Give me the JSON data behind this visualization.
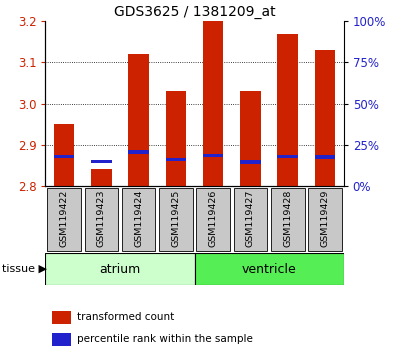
{
  "title": "GDS3625 / 1381209_at",
  "samples": [
    "GSM119422",
    "GSM119423",
    "GSM119424",
    "GSM119425",
    "GSM119426",
    "GSM119427",
    "GSM119428",
    "GSM119429"
  ],
  "red_values": [
    2.95,
    2.84,
    3.12,
    3.03,
    3.2,
    3.03,
    3.17,
    3.13
  ],
  "blue_values": [
    2.872,
    2.86,
    2.882,
    2.864,
    2.874,
    2.858,
    2.872,
    2.87
  ],
  "ymin": 2.8,
  "ymax": 3.2,
  "yticks": [
    2.8,
    2.9,
    3.0,
    3.1,
    3.2
  ],
  "atrium_label": "atrium",
  "ventricle_label": "ventricle",
  "tissue_label": "tissue",
  "legend_red": "transformed count",
  "legend_blue": "percentile rank within the sample",
  "red_color": "#cc2200",
  "blue_color": "#2222cc",
  "bar_width": 0.55,
  "bg_color": "#ffffff",
  "atrium_color": "#ccffcc",
  "ventricle_color": "#55ee55",
  "tick_color_left": "#cc2200",
  "tick_color_right": "#2222cc",
  "label_gray": "#c8c8c8",
  "n_atrium": 4,
  "n_ventricle": 4
}
